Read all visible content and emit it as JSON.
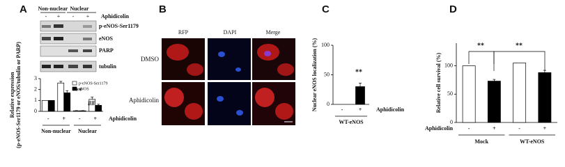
{
  "panel_labels": [
    "A",
    "B",
    "C",
    "D"
  ],
  "blot": {
    "headers": [
      "Non-nuclear",
      "Nuclear"
    ],
    "treatment": "Aphidicolin",
    "signs": [
      "-",
      "+",
      "-",
      "+"
    ],
    "rows": [
      "p-eNOS-Ser1179",
      "eNOS",
      "PARP",
      "tubulin"
    ]
  },
  "micrographs": {
    "columns": [
      "RFP",
      "DAPI",
      "Merge"
    ],
    "rows": [
      "DMSO",
      "Aphidicolin"
    ]
  },
  "chart_data": [
    {
      "type": "bar",
      "y_label": [
        "Relative expression",
        "(p-eNOS-Ser1179 or eNOS/tubulin or PARP)"
      ],
      "categories": [
        "-",
        "+",
        "-",
        "+"
      ],
      "groups": [
        "Non-nuclear",
        "Nuclear"
      ],
      "x_label": "Aphidicolin",
      "series": [
        {
          "name": "p-eNOS-Ser1179",
          "color": "#ffffff",
          "values": [
            1,
            2.6,
            0.05,
            1.1
          ],
          "errors": [
            0,
            0.15,
            0.02,
            0.2
          ]
        },
        {
          "name": "eNOS",
          "color": "#000000",
          "values": [
            1,
            1.7,
            0.05,
            0.55
          ],
          "errors": [
            0,
            0.2,
            0.02,
            0.1
          ]
        }
      ],
      "annotations": [
        "**",
        "##"
      ],
      "ylim": [
        0,
        3
      ],
      "yticks": [
        0,
        1,
        2,
        3
      ]
    },
    {
      "type": "bar",
      "y_label": "Nuclear eNOS localization (%)",
      "categories": [
        "-",
        "+"
      ],
      "groups": [
        "WT-eNOS"
      ],
      "x_label": "Aphidicolin",
      "values": [
        0,
        30
      ],
      "errors": [
        0,
        6
      ],
      "colors": [
        "#000000",
        "#000000"
      ],
      "annotations": [
        "**"
      ],
      "ylim": [
        0,
        100
      ],
      "yticks": [
        0,
        50,
        100
      ]
    },
    {
      "type": "bar",
      "y_label": "Relative cell survival (%)",
      "categories": [
        "-",
        "+",
        "-",
        "+"
      ],
      "groups": [
        "Mock",
        "WT-eNOS"
      ],
      "x_label": "Aphidicolin",
      "values": [
        100,
        73,
        105,
        88
      ],
      "errors": [
        0,
        3,
        0,
        4
      ],
      "colors": [
        "#ffffff",
        "#000000",
        "#ffffff",
        "#000000"
      ],
      "annotations": [
        "**",
        "**"
      ],
      "ylim": [
        0,
        140
      ],
      "yticks": [
        0,
        50,
        100
      ]
    }
  ]
}
